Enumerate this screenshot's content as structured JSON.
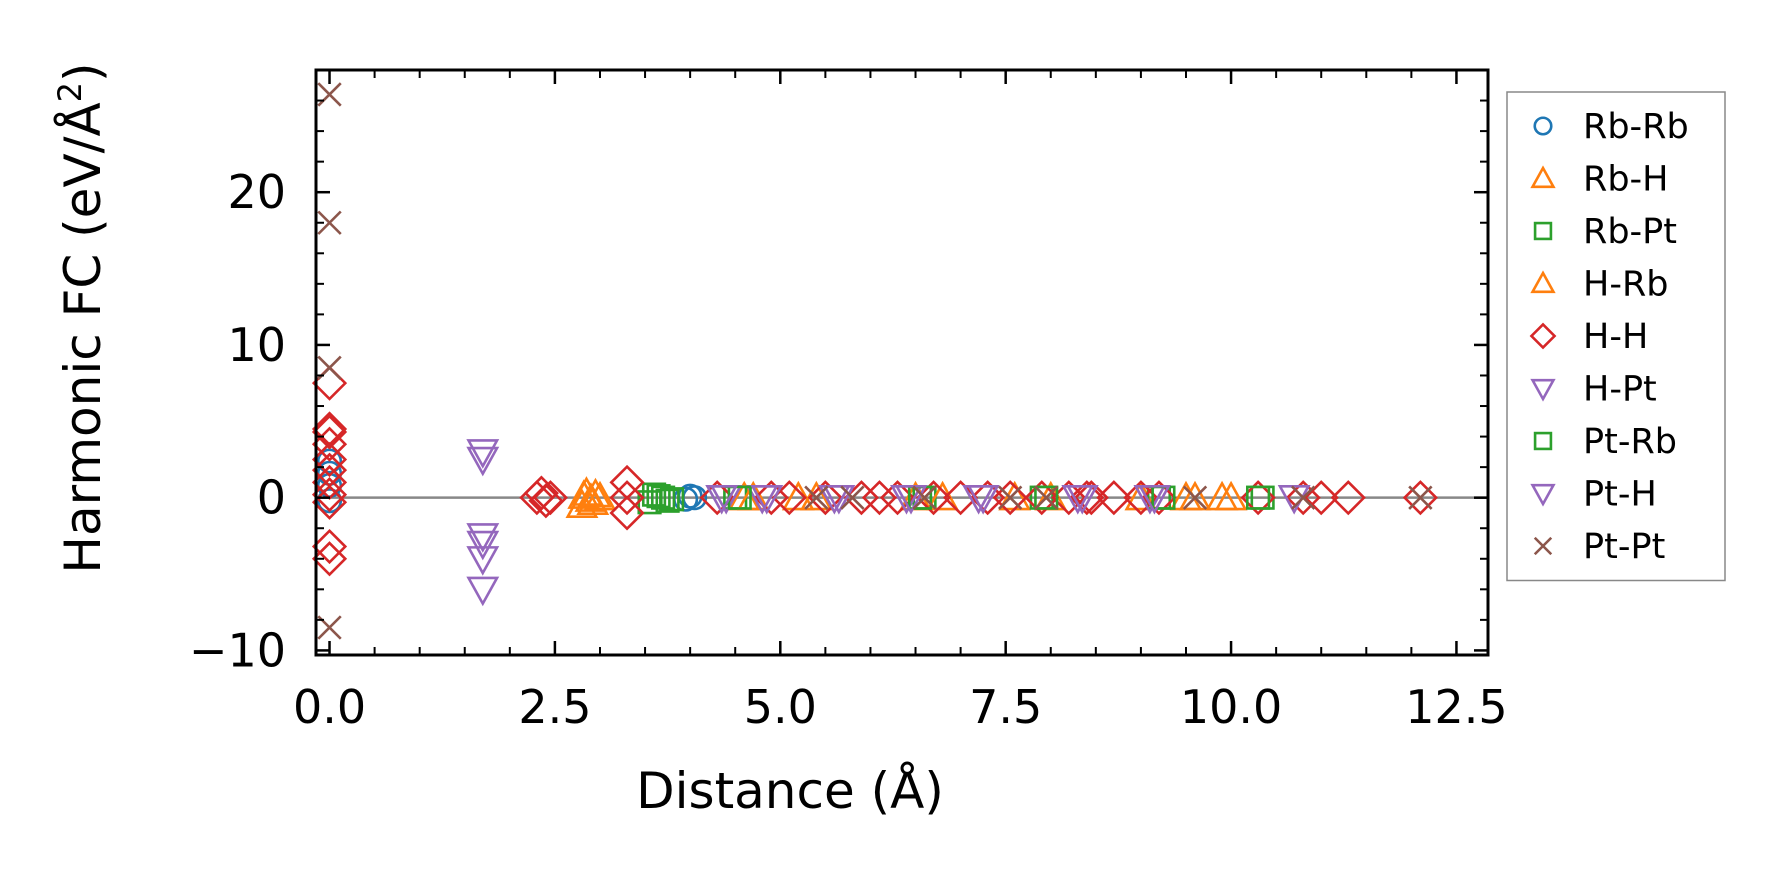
{
  "chart_data": {
    "type": "scatter",
    "title": "",
    "xlabel": "Distance (Å)",
    "ylabel_main": "Harmonic FC (eV/Å",
    "ylabel_sup": "2",
    "ylabel_close": ")",
    "xlim": [
      -0.15,
      12.85
    ],
    "ylim": [
      -10.3,
      28
    ],
    "xticks": [
      0.0,
      2.5,
      5.0,
      7.5,
      10.0,
      12.5
    ],
    "xtick_labels": [
      "0.0",
      "2.5",
      "5.0",
      "7.5",
      "10.0",
      "12.5"
    ],
    "yticks": [
      -10,
      0,
      10,
      20
    ],
    "ytick_labels": [
      "−10",
      "0",
      "10",
      "20"
    ],
    "reference_line_y": 0,
    "legend_position": "outside-right",
    "series": [
      {
        "name": "Rb-Rb",
        "marker": "circle",
        "color": "#1f77b4",
        "x": [
          0,
          0,
          0,
          0,
          3.95,
          4.0,
          4.05
        ],
        "y": [
          -0.2,
          0.8,
          1.6,
          2.4,
          -0.1,
          0.1,
          0.0
        ]
      },
      {
        "name": "Rb-H",
        "marker": "triangle-up",
        "color": "#ff7f0e",
        "x": [
          2.8,
          2.85,
          2.9,
          2.95,
          3.0,
          4.6,
          5.2,
          6.5,
          7.6,
          9.0,
          9.5,
          9.9
        ],
        "y": [
          -0.5,
          0.3,
          -0.1,
          0.2,
          0.0,
          0.0,
          0.0,
          0.0,
          0.0,
          0.0,
          0.0,
          0.0
        ]
      },
      {
        "name": "Rb-Pt",
        "marker": "square",
        "color": "#2ca02c",
        "x": [
          3.55,
          3.6,
          3.7,
          3.8,
          4.5,
          6.6,
          7.9,
          9.2,
          10.35
        ],
        "y": [
          -0.3,
          0.2,
          0.0,
          -0.1,
          0.0,
          0.0,
          0.0,
          0.0,
          0.0
        ]
      },
      {
        "name": "H-Rb",
        "marker": "triangle-up",
        "color": "#ff7f0e",
        "x": [
          2.82,
          2.92,
          4.7,
          5.4,
          6.8,
          8.0,
          9.6,
          10.0
        ],
        "y": [
          0.1,
          -0.3,
          0.0,
          0.0,
          0.0,
          0.0,
          0.0,
          0.0
        ]
      },
      {
        "name": "H-H",
        "marker": "diamond",
        "color": "#d62728",
        "x": [
          0,
          0,
          0,
          0,
          0,
          0,
          0,
          0,
          0,
          0,
          0,
          2.3,
          2.35,
          2.4,
          2.45,
          3.3,
          3.3,
          3.3,
          4.3,
          4.9,
          5.1,
          5.5,
          5.9,
          6.1,
          6.3,
          6.7,
          7.0,
          7.3,
          7.55,
          7.9,
          8.2,
          8.4,
          8.45,
          8.7,
          9.0,
          9.2,
          10.3,
          10.8,
          11.0,
          11.3,
          12.1
        ],
        "y": [
          7.5,
          4.5,
          4.3,
          3.5,
          2.5,
          1.8,
          1.0,
          -3.2,
          -4.0,
          0.2,
          -0.3,
          0.0,
          0.3,
          -0.2,
          0.0,
          1.0,
          -1.0,
          0.0,
          0.0,
          0.0,
          0.0,
          0.0,
          0.0,
          0.0,
          0.0,
          0.0,
          0.0,
          0.0,
          0.0,
          0.0,
          0.0,
          0.0,
          0.0,
          0.0,
          0.0,
          0.0,
          0.0,
          0.0,
          0.0,
          0.0,
          0.0
        ]
      },
      {
        "name": "H-Pt",
        "marker": "triangle-down",
        "color": "#9467bd",
        "x": [
          1.7,
          1.7,
          1.7,
          1.7,
          1.7,
          1.7,
          4.4,
          4.8,
          5.6,
          6.4,
          7.2,
          8.3,
          9.1
        ],
        "y": [
          3.0,
          2.5,
          -2.5,
          -3.0,
          -4.0,
          -6.0,
          0.0,
          0.0,
          0.0,
          0.0,
          0.0,
          0.0,
          0.0
        ]
      },
      {
        "name": "Pt-Rb",
        "marker": "square",
        "color": "#2ca02c",
        "x": [
          3.65,
          3.75,
          4.55,
          6.55,
          7.95,
          9.25,
          10.3
        ],
        "y": [
          0.1,
          -0.2,
          0.0,
          0.0,
          0.0,
          0.0,
          0.0
        ]
      },
      {
        "name": "Pt-H",
        "marker": "triangle-down",
        "color": "#9467bd",
        "x": [
          4.35,
          4.85,
          5.65,
          6.45,
          7.25,
          8.35,
          9.15,
          10.7
        ],
        "y": [
          0.0,
          0.0,
          0.0,
          0.0,
          0.0,
          0.0,
          0.0,
          0.0
        ]
      },
      {
        "name": "Pt-Pt",
        "marker": "x",
        "color": "#8c564b",
        "x": [
          0,
          0,
          0,
          0,
          5.4,
          5.8,
          6.6,
          7.55,
          7.95,
          9.6,
          10.8,
          12.1
        ],
        "y": [
          26.4,
          18.0,
          8.5,
          -8.5,
          0.0,
          0.0,
          0.0,
          0.0,
          0.0,
          0.0,
          0.0,
          0.0
        ]
      }
    ]
  }
}
